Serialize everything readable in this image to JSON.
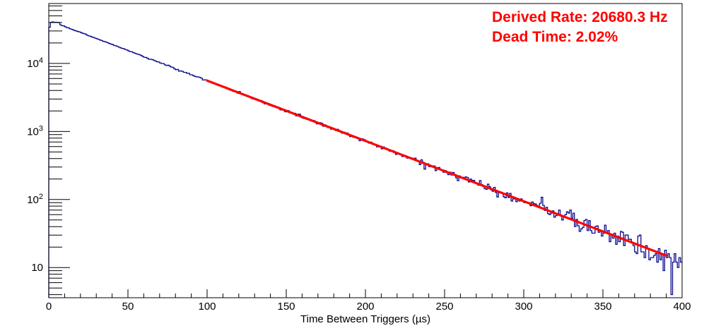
{
  "figure": {
    "background": "#ffffff",
    "frame_color": "#000000",
    "text_color": "#000000"
  },
  "annotations": {
    "derived_rate": "Derived Rate: 20680.3 Hz",
    "dead_time": "Dead Time: 2.02%",
    "color": "#ff0000"
  },
  "chart_data": {
    "type": "histogram",
    "title": "",
    "xlabel": "Time Between Triggers (µs)",
    "ylabel": "",
    "x_range": [
      0,
      400
    ],
    "y_range": [
      3.6,
      76000
    ],
    "y_scale": "log",
    "grid": false,
    "legend": "none",
    "bin_width_us": 1,
    "n_bins": 400,
    "x_major_ticks": [
      0,
      50,
      100,
      150,
      200,
      250,
      300,
      350,
      400
    ],
    "x_minor_tick_step": 10,
    "y_major_ticks": [
      10,
      100,
      1000,
      10000
    ],
    "y_tick_labels": [
      "10",
      "10^2",
      "10^3",
      "10^4"
    ],
    "series": [
      {
        "name": "time-between-triggers-histogram",
        "color": "#0a0a8c",
        "line_width": 1.3,
        "model": {
          "amplitude": 43000,
          "decay_constant_us": 49,
          "rise_bins": [
            34000,
            40000,
            41000,
            40500,
            40600,
            40200,
            39800
          ],
          "noise": "poisson",
          "noise_seed": 20680
        }
      },
      {
        "name": "exponential-fit",
        "color": "#ff0000",
        "line_width": 3.2,
        "fit_range_us": [
          100,
          390
        ]
      }
    ],
    "sampled_points": [
      [
        0.5,
        34000
      ],
      [
        2.5,
        40800
      ],
      [
        5,
        40000
      ],
      [
        10,
        36300
      ],
      [
        20,
        29600
      ],
      [
        30,
        24100
      ],
      [
        40,
        19600
      ],
      [
        50,
        16000
      ],
      [
        60,
        13000
      ],
      [
        80,
        8600
      ],
      [
        100,
        5600
      ],
      [
        120,
        3700
      ],
      [
        140,
        2430
      ],
      [
        160,
        1600
      ],
      [
        180,
        1050
      ],
      [
        200,
        690
      ],
      [
        220,
        455
      ],
      [
        240,
        300
      ],
      [
        260,
        197
      ],
      [
        280,
        130
      ],
      [
        300,
        85
      ],
      [
        320,
        56
      ],
      [
        340,
        37
      ],
      [
        360,
        24
      ],
      [
        380,
        16
      ],
      [
        400,
        11
      ]
    ]
  }
}
